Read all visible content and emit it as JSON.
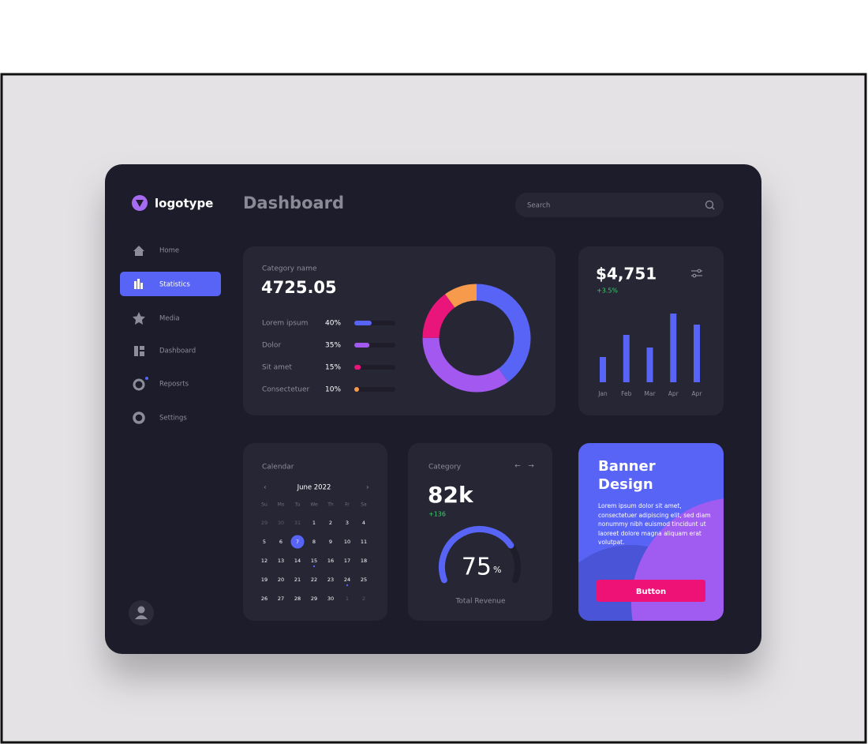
{
  "sidebar": {
    "logo": "logotype",
    "nav": [
      "Home",
      "Statistics",
      "Media",
      "Dashboard",
      "Reposrts",
      "Settings"
    ]
  },
  "header": {
    "title": "Dashboard",
    "search_placeholder": "Search"
  },
  "stats_card": {
    "label": "Category name",
    "total": 4725.05,
    "items": [
      {
        "label": "Lorem ipsum",
        "value": 40,
        "value_label": "40%",
        "color": "#5864f5"
      },
      {
        "label": "Dolor",
        "value": 35,
        "value_label": "35%",
        "color": "#a358f0"
      },
      {
        "label": "Sit amet",
        "value": 15,
        "value_label": "15%",
        "color": "#e9157a"
      },
      {
        "label": "Consectetuer",
        "value": 10,
        "value_label": "10%",
        "color": "#f79a4c"
      }
    ]
  },
  "revenue_card": {
    "amount": "$4,751",
    "change": "+3.5%",
    "chart": {
      "categories": [
        "Jan",
        "Feb",
        "Mar",
        "Apr",
        "Apr"
      ],
      "values": [
        32,
        60,
        44,
        87,
        73
      ],
      "ylim": [
        0,
        100
      ],
      "color": "#5864f5"
    }
  },
  "calendar_card": {
    "title": "Calendar",
    "month": "June 2022",
    "weekdays": [
      "Su",
      "Mo",
      "Tu",
      "We",
      "Th",
      "Fr",
      "Sa"
    ],
    "weeks": [
      [
        29,
        30,
        31,
        1,
        2,
        3,
        4
      ],
      [
        5,
        6,
        7,
        8,
        9,
        10,
        11
      ],
      [
        12,
        13,
        14,
        15,
        16,
        17,
        18
      ],
      [
        19,
        20,
        21,
        22,
        23,
        24,
        25
      ],
      [
        26,
        27,
        28,
        29,
        30,
        1,
        2
      ]
    ]
  },
  "category_card": {
    "title": "Category",
    "value": "82k",
    "change": "+136",
    "gauge": {
      "value": 75,
      "unit": "%",
      "label": "Total Revenue"
    }
  },
  "banner_card": {
    "title": "Banner Design",
    "text": "Lorem ipsum dolor sit amet, consectetuer adipiscing elit, sed diam nonummy nibh euismod tincidunt ut laoreet dolore magna aliquam erat volutpat.",
    "button": "Button"
  }
}
